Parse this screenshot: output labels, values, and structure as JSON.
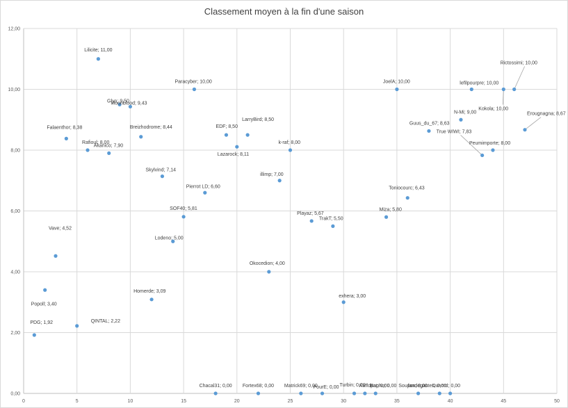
{
  "chart_data": {
    "type": "scatter",
    "title": "Classement moyen à la fin d'une saison",
    "xlabel": "",
    "ylabel": "",
    "xlim": [
      0,
      50
    ],
    "ylim": [
      0,
      12
    ],
    "x_ticks": [
      "0",
      "5",
      "10",
      "15",
      "20",
      "25",
      "30",
      "35",
      "40",
      "45",
      "50"
    ],
    "y_ticks": [
      "0,00",
      "2,00",
      "4,00",
      "6,00",
      "8,00",
      "10,00",
      "12,00"
    ],
    "grid": true,
    "legend": "none",
    "point_color": "#5b9bd5",
    "points": [
      {
        "x": 1,
        "y": 1.92,
        "label": "PDG; 1,92"
      },
      {
        "x": 2,
        "y": 3.4,
        "label": "Popoll; 3,40"
      },
      {
        "x": 3,
        "y": 4.52,
        "label": "Vave; 4,52"
      },
      {
        "x": 4,
        "y": 8.38,
        "label": "Falaenthor; 8,38"
      },
      {
        "x": 5,
        "y": 2.22,
        "label": "QINTAL; 2,22"
      },
      {
        "x": 6,
        "y": 8.0,
        "label": "Rafioul; 8,00"
      },
      {
        "x": 7,
        "y": 11.0,
        "label": "Lilicite; 11,00"
      },
      {
        "x": 8,
        "y": 7.9,
        "label": "Akanico; 7,90"
      },
      {
        "x": 9,
        "y": 9.5,
        "label": "Glyn; 9,50"
      },
      {
        "x": 10,
        "y": 9.43,
        "label": "Moonblood; 9,43"
      },
      {
        "x": 11,
        "y": 8.44,
        "label": "Breizhodrome; 8,44"
      },
      {
        "x": 12,
        "y": 3.09,
        "label": "Homerde; 3,09"
      },
      {
        "x": 13,
        "y": 7.14,
        "label": "Skylvind; 7,14"
      },
      {
        "x": 14,
        "y": 5.0,
        "label": "Lodeno; 5,00"
      },
      {
        "x": 15,
        "y": 5.81,
        "label": "SOF40; 5,81"
      },
      {
        "x": 16,
        "y": 10.0,
        "label": "Paracyber; 10,00"
      },
      {
        "x": 17,
        "y": 6.6,
        "label": "Pierrot LD; 6,60"
      },
      {
        "x": 18,
        "y": 0.0,
        "label": "Chacal31; 0,00"
      },
      {
        "x": 19,
        "y": 8.5,
        "label": "EDF; 8,50"
      },
      {
        "x": 20,
        "y": 8.11,
        "label": "Lazarock; 8,11"
      },
      {
        "x": 21,
        "y": 8.5,
        "label": "LarryBird; 8,50"
      },
      {
        "x": 22,
        "y": 0.0,
        "label": "Fortex68; 0,00"
      },
      {
        "x": 23,
        "y": 4.0,
        "label": "Okocedion; 4,00"
      },
      {
        "x": 24,
        "y": 7.0,
        "label": "illimp; 7,00"
      },
      {
        "x": 25,
        "y": 8.0,
        "label": "k-raf; 8,00"
      },
      {
        "x": 26,
        "y": 0.0,
        "label": "Matrick69; 0,00"
      },
      {
        "x": 27,
        "y": 5.67,
        "label": "Playaz; 5,67"
      },
      {
        "x": 28,
        "y": 0.0,
        "label": "PourE; 0,00"
      },
      {
        "x": 29,
        "y": 5.5,
        "label": "TrakT; 5,50"
      },
      {
        "x": 30,
        "y": 3.0,
        "label": "exhera; 3,00"
      },
      {
        "x": 31,
        "y": 0.0,
        "label": "Turbin; 0,00"
      },
      {
        "x": 32,
        "y": 0.0,
        "label": "Kaffdpat; 0,00"
      },
      {
        "x": 33,
        "y": 0.0,
        "label": "Rapho; 0,00"
      },
      {
        "x": 34,
        "y": 5.8,
        "label": "Miza; 5,80"
      },
      {
        "x": 35,
        "y": 10.0,
        "label": "JoelA; 10,00"
      },
      {
        "x": 36,
        "y": 6.43,
        "label": "Toniocourc; 6,43"
      },
      {
        "x": 37,
        "y": 0.0,
        "label": "fandegastes; 0,00"
      },
      {
        "x": 38,
        "y": 8.63,
        "label": "Guus_du_67; 8,63"
      },
      {
        "x": 39,
        "y": 0.0,
        "label": "Soupon; 0,00"
      },
      {
        "x": 40,
        "y": 0.0,
        "label": "Dunord; 0,00"
      },
      {
        "x": 41,
        "y": 9.0,
        "label": "N-Mi; 9,00"
      },
      {
        "x": 42,
        "y": 10.0,
        "label": "lefilpourpre; 10,00"
      },
      {
        "x": 43,
        "y": 7.83,
        "label": "True WIWI; 7,83"
      },
      {
        "x": 44,
        "y": 8.0,
        "label": "Peumimporte; 8,00"
      },
      {
        "x": 45,
        "y": 10.0,
        "label": "Kokola; 10,00"
      },
      {
        "x": 46,
        "y": 10.0,
        "label": "Rictossimi; 10,00"
      },
      {
        "x": 47,
        "y": 8.67,
        "label": "Erougnagna; 8,67"
      }
    ]
  }
}
